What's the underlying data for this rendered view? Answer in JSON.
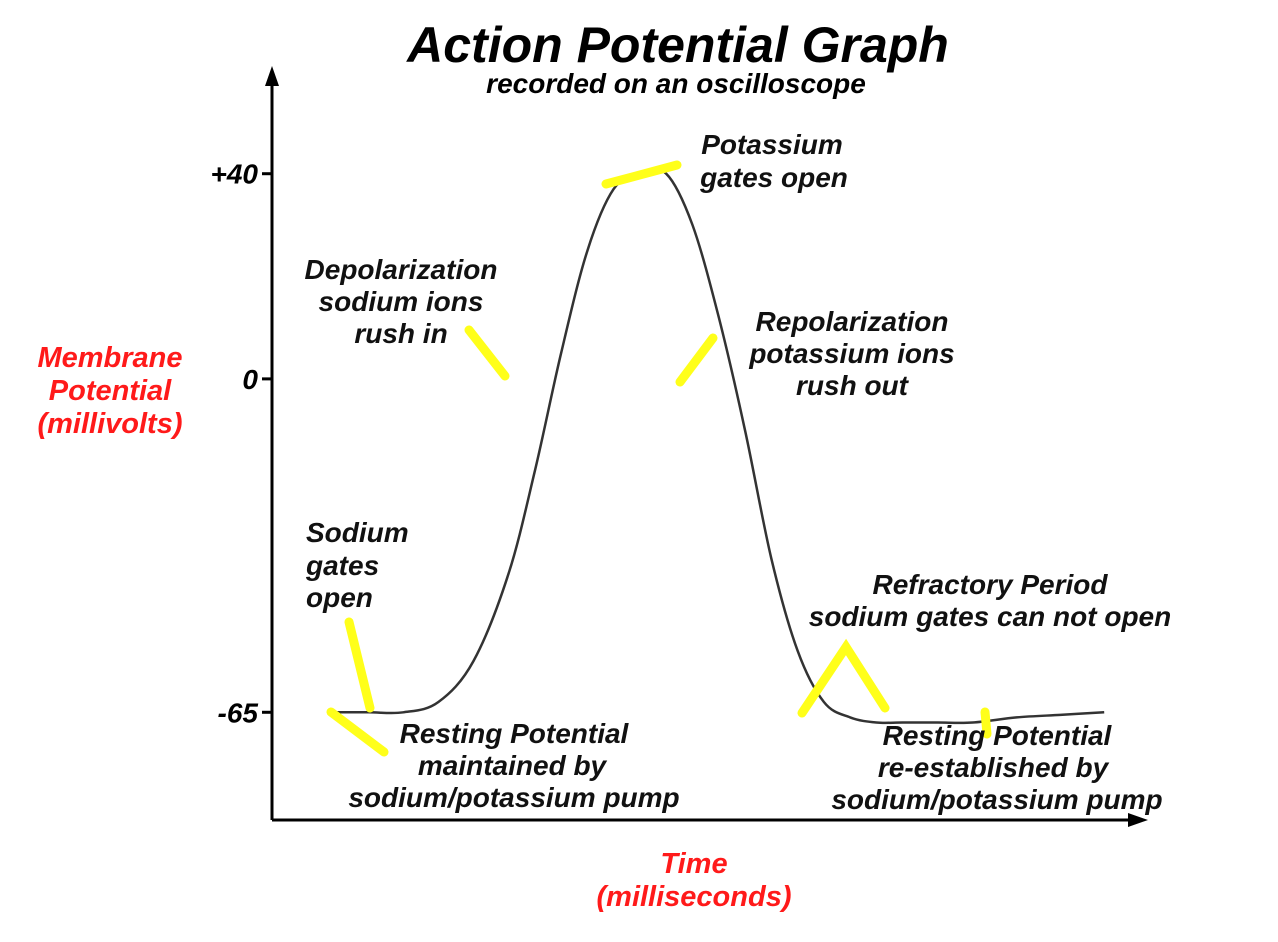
{
  "chart_data": {
    "type": "line",
    "title": "Action Potential Graph",
    "subtitle": "recorded on an oscilloscope",
    "ylabel": [
      "Membrane",
      "Potential",
      "(millivolts)"
    ],
    "xlabel": [
      "Time",
      "(milliseconds)"
    ],
    "yticks": [
      "+40",
      "0",
      "-65"
    ],
    "ytick_values": [
      40,
      0,
      -65
    ],
    "ylim": [
      -86,
      61
    ],
    "xlim": [
      0,
      10
    ],
    "series": [
      {
        "x": [
          0.65,
          1.1,
          1.5,
          1.9,
          2.3,
          2.7,
          3.0,
          3.3,
          3.6,
          3.9,
          4.2,
          4.5,
          4.8,
          5.1,
          5.4,
          5.7,
          6.0,
          6.3,
          6.6,
          6.9,
          7.2,
          7.6,
          8.0,
          8.5,
          9.0,
          9.5
        ],
        "y": [
          -65,
          -65,
          -65,
          -63,
          -55,
          -38,
          -18,
          5,
          25,
          37,
          40,
          40,
          30,
          12,
          -10,
          -35,
          -53,
          -63,
          -66,
          -67,
          -67,
          -67,
          -67,
          -66,
          -65.5,
          -65
        ]
      }
    ],
    "annotations": [
      {
        "lines": [
          "Potassium",
          "gates open"
        ]
      },
      {
        "lines": [
          "Depolarization",
          "sodium ions",
          "rush in"
        ]
      },
      {
        "lines": [
          "Repolarization",
          "potassium ions",
          "rush out"
        ]
      },
      {
        "lines": [
          "Sodium",
          "gates",
          "open"
        ]
      },
      {
        "lines": [
          "Refractory Period",
          "sodium gates can not open"
        ]
      },
      {
        "lines": [
          "Resting Potential",
          "maintained by",
          "sodium/potassium pump"
        ]
      },
      {
        "lines": [
          "Resting Potential",
          "re-established by",
          "sodium/potassium pump"
        ]
      }
    ],
    "colors": {
      "curve": "#333333",
      "axis": "#000000",
      "axis_label": "#ff1a1a",
      "leader": "#ffff1a",
      "text": "#111111"
    },
    "grid": false,
    "legend": "none"
  }
}
